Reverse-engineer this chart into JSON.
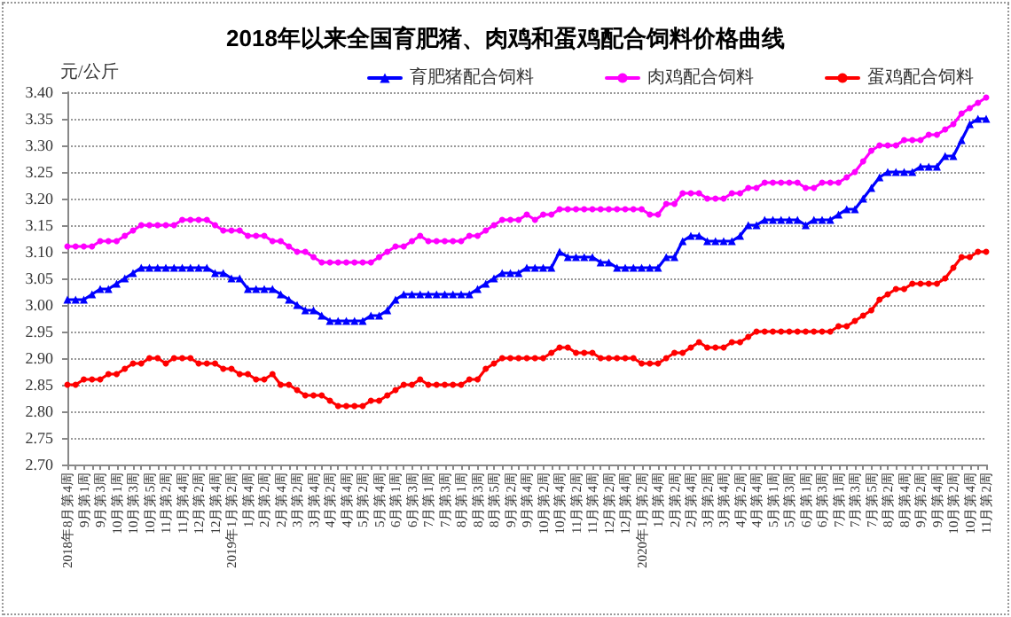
{
  "chart_data": {
    "type": "line",
    "title": "2018年以来全国育肥猪、肉鸡和蛋鸡配合饲料价格曲线",
    "ylabel": "元/公斤",
    "categories": [
      "2018年8月第4周",
      null,
      "9月第1周",
      null,
      "9月第3周",
      null,
      "10月第1周",
      null,
      "10月第3周",
      null,
      "10月第5周",
      null,
      "11月第2周",
      null,
      "11月第4周",
      null,
      "12月第2周",
      null,
      "12月第4周",
      null,
      "2019年1月第2周",
      null,
      "1月第4周",
      null,
      "2月第2周",
      null,
      "2月第4周",
      null,
      "3月第2周",
      null,
      "3月第4周",
      null,
      "4月第2周",
      null,
      "4月第4周",
      null,
      "5月第2周",
      null,
      "5月第4周",
      null,
      "6月第1周",
      null,
      "6月第3周",
      null,
      "7月第1周",
      null,
      "7月第3周",
      null,
      "8月第1周",
      null,
      "8月第3周",
      null,
      "8月第5周",
      null,
      "9月第2周",
      null,
      "9月第4周",
      null,
      "10月第2周",
      null,
      "10月第4周",
      null,
      "11月第2周",
      null,
      "11月第4周",
      null,
      "12月第2周",
      null,
      "12月第4周",
      null,
      "2020年1月第2周",
      null,
      "1月第4周",
      null,
      "2月第2周",
      null,
      "2月第4周",
      null,
      "3月第2周",
      null,
      "3月第4周",
      null,
      "4月第2周",
      null,
      "4月第4周",
      null,
      "5月第1周",
      null,
      "5月第3周",
      null,
      "6月第1周",
      null,
      "6月第3周",
      null,
      "7月第1周",
      null,
      "7月第3周",
      null,
      "7月第5周",
      null,
      "8月第2周",
      null,
      "8月第4周",
      null,
      "9月第2周",
      null,
      "9月第4周",
      null,
      "10月第2周",
      null,
      "10月第4周",
      null,
      "11月第2周"
    ],
    "series": [
      {
        "name": "育肥猪配合饲料",
        "color": "#0000ff",
        "marker": "triangle",
        "values": [
          3.01,
          3.01,
          3.01,
          3.02,
          3.03,
          3.03,
          3.04,
          3.05,
          3.06,
          3.07,
          3.07,
          3.07,
          3.07,
          3.07,
          3.07,
          3.07,
          3.07,
          3.07,
          3.06,
          3.06,
          3.05,
          3.05,
          3.03,
          3.03,
          3.03,
          3.03,
          3.02,
          3.01,
          3.0,
          2.99,
          2.99,
          2.98,
          2.97,
          2.97,
          2.97,
          2.97,
          2.97,
          2.98,
          2.98,
          2.99,
          3.01,
          3.02,
          3.02,
          3.02,
          3.02,
          3.02,
          3.02,
          3.02,
          3.02,
          3.02,
          3.03,
          3.04,
          3.05,
          3.06,
          3.06,
          3.06,
          3.07,
          3.07,
          3.07,
          3.07,
          3.1,
          3.09,
          3.09,
          3.09,
          3.09,
          3.08,
          3.08,
          3.07,
          3.07,
          3.07,
          3.07,
          3.07,
          3.07,
          3.09,
          3.09,
          3.12,
          3.13,
          3.13,
          3.12,
          3.12,
          3.12,
          3.12,
          3.13,
          3.15,
          3.15,
          3.16,
          3.16,
          3.16,
          3.16,
          3.16,
          3.15,
          3.16,
          3.16,
          3.16,
          3.17,
          3.18,
          3.18,
          3.2,
          3.22,
          3.24,
          3.25,
          3.25,
          3.25,
          3.25,
          3.26,
          3.26,
          3.26,
          3.28,
          3.28,
          3.31,
          3.34,
          3.35,
          3.35
        ]
      },
      {
        "name": "肉鸡配合饲料",
        "color": "#ff00ff",
        "marker": "circle",
        "values": [
          3.11,
          3.11,
          3.11,
          3.11,
          3.12,
          3.12,
          3.12,
          3.13,
          3.14,
          3.15,
          3.15,
          3.15,
          3.15,
          3.15,
          3.16,
          3.16,
          3.16,
          3.16,
          3.15,
          3.14,
          3.14,
          3.14,
          3.13,
          3.13,
          3.13,
          3.12,
          3.12,
          3.11,
          3.1,
          3.1,
          3.09,
          3.08,
          3.08,
          3.08,
          3.08,
          3.08,
          3.08,
          3.08,
          3.09,
          3.1,
          3.11,
          3.11,
          3.12,
          3.13,
          3.12,
          3.12,
          3.12,
          3.12,
          3.12,
          3.13,
          3.13,
          3.14,
          3.15,
          3.16,
          3.16,
          3.16,
          3.17,
          3.16,
          3.17,
          3.17,
          3.18,
          3.18,
          3.18,
          3.18,
          3.18,
          3.18,
          3.18,
          3.18,
          3.18,
          3.18,
          3.18,
          3.17,
          3.17,
          3.19,
          3.19,
          3.21,
          3.21,
          3.21,
          3.2,
          3.2,
          3.2,
          3.21,
          3.21,
          3.22,
          3.22,
          3.23,
          3.23,
          3.23,
          3.23,
          3.23,
          3.22,
          3.22,
          3.23,
          3.23,
          3.23,
          3.24,
          3.25,
          3.27,
          3.29,
          3.3,
          3.3,
          3.3,
          3.31,
          3.31,
          3.31,
          3.32,
          3.32,
          3.33,
          3.34,
          3.36,
          3.37,
          3.38,
          3.39
        ]
      },
      {
        "name": "蛋鸡配合饲料",
        "color": "#ff0000",
        "marker": "circle",
        "values": [
          2.85,
          2.85,
          2.86,
          2.86,
          2.86,
          2.87,
          2.87,
          2.88,
          2.89,
          2.89,
          2.9,
          2.9,
          2.89,
          2.9,
          2.9,
          2.9,
          2.89,
          2.89,
          2.89,
          2.88,
          2.88,
          2.87,
          2.87,
          2.86,
          2.86,
          2.87,
          2.85,
          2.85,
          2.84,
          2.83,
          2.83,
          2.83,
          2.82,
          2.81,
          2.81,
          2.81,
          2.81,
          2.82,
          2.82,
          2.83,
          2.84,
          2.85,
          2.85,
          2.86,
          2.85,
          2.85,
          2.85,
          2.85,
          2.85,
          2.86,
          2.86,
          2.88,
          2.89,
          2.9,
          2.9,
          2.9,
          2.9,
          2.9,
          2.9,
          2.91,
          2.92,
          2.92,
          2.91,
          2.91,
          2.91,
          2.9,
          2.9,
          2.9,
          2.9,
          2.9,
          2.89,
          2.89,
          2.89,
          2.9,
          2.91,
          2.91,
          2.92,
          2.93,
          2.92,
          2.92,
          2.92,
          2.93,
          2.93,
          2.94,
          2.95,
          2.95,
          2.95,
          2.95,
          2.95,
          2.95,
          2.95,
          2.95,
          2.95,
          2.95,
          2.96,
          2.96,
          2.97,
          2.98,
          2.99,
          3.01,
          3.02,
          3.03,
          3.03,
          3.04,
          3.04,
          3.04,
          3.04,
          3.05,
          3.07,
          3.09,
          3.09,
          3.1,
          3.1
        ]
      }
    ],
    "ylim": [
      2.7,
      3.4
    ],
    "yticks": [
      {
        "value": 2.7,
        "label": "2.70"
      },
      {
        "value": 2.75,
        "label": "2.75"
      },
      {
        "value": 2.8,
        "label": "2.80"
      },
      {
        "value": 2.85,
        "label": "2.85"
      },
      {
        "value": 2.9,
        "label": "2.90"
      },
      {
        "value": 2.95,
        "label": "2.95"
      },
      {
        "value": 3.0,
        "label": "3.00"
      },
      {
        "value": 3.05,
        "label": "3.05"
      },
      {
        "value": 3.1,
        "label": "3.10"
      },
      {
        "value": 3.15,
        "label": "3.15"
      },
      {
        "value": 3.2,
        "label": "3.20"
      },
      {
        "value": 3.25,
        "label": "3.25"
      },
      {
        "value": 3.3,
        "label": "3.30"
      },
      {
        "value": 3.35,
        "label": "3.35"
      },
      {
        "value": 3.4,
        "label": "3.40"
      }
    ],
    "grid": "y",
    "legend": "top right",
    "line_style": "solid"
  }
}
